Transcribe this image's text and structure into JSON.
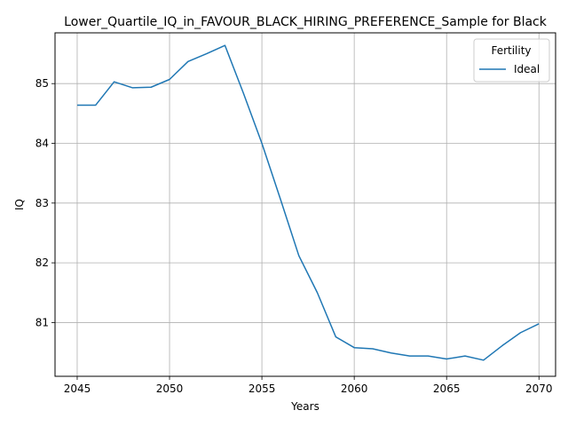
{
  "chart_data": {
    "type": "line",
    "title": "Lower_Quartile_IQ_in_FAVOUR_BLACK_HIRING_PREFERENCE_Sample for Black",
    "xlabel": "Years",
    "ylabel": "IQ",
    "xlim": [
      2043.8,
      2070.9
    ],
    "ylim": [
      80.1,
      85.85
    ],
    "xticks": [
      2045,
      2050,
      2055,
      2060,
      2065,
      2070
    ],
    "yticks": [
      81,
      82,
      83,
      84,
      85
    ],
    "grid": true,
    "legend": {
      "title": "Fertility",
      "placement": "top-right"
    },
    "series": [
      {
        "name": "Ideal",
        "color": "#1f77b4",
        "x": [
          2045,
          2046,
          2047,
          2048,
          2049,
          2050,
          2051,
          2052,
          2053,
          2054,
          2055,
          2056,
          2057,
          2058,
          2059,
          2060,
          2061,
          2062,
          2063,
          2064,
          2065,
          2066,
          2067,
          2068,
          2069,
          2070
        ],
        "y": [
          84.64,
          84.64,
          85.03,
          84.93,
          84.94,
          85.07,
          85.37,
          85.5,
          85.64,
          84.84,
          84.0,
          83.07,
          82.12,
          81.5,
          80.76,
          80.58,
          80.56,
          80.49,
          80.44,
          80.44,
          80.39,
          80.44,
          80.37,
          80.61,
          80.83,
          80.98
        ]
      }
    ]
  }
}
